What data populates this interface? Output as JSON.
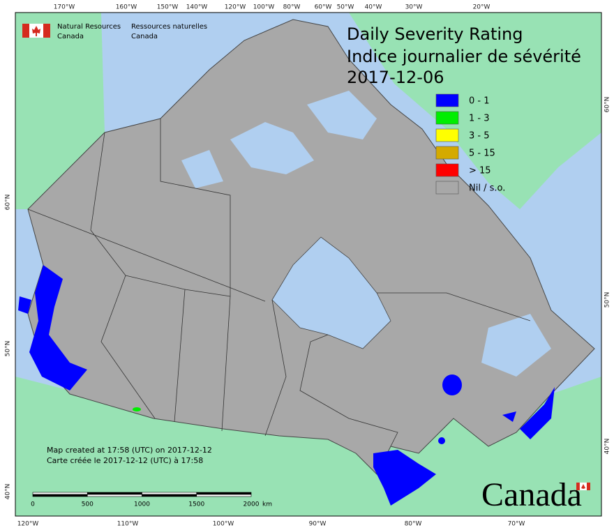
{
  "header": {
    "title_lines": [
      "Daily Severity Rating",
      "Indice journalier de sévérité",
      "2017-12-06"
    ]
  },
  "logo": {
    "english": [
      "Natural Resources",
      "Canada"
    ],
    "french": [
      "Ressources naturelles",
      "Canada"
    ]
  },
  "legend": {
    "items": [
      {
        "label": "0 - 1",
        "color": "#0000ff"
      },
      {
        "label": "1 - 3",
        "color": "#00ee00"
      },
      {
        "label": "3 - 5",
        "color": "#ffff00"
      },
      {
        "label": "5 - 15",
        "color": "#d4aa00"
      },
      {
        "label": "> 15",
        "color": "#ff0000"
      },
      {
        "label": "Nil / s.o.",
        "color": "#a8a8a8"
      }
    ]
  },
  "graticule": {
    "top": [
      "170°W",
      "160°W",
      "150°W",
      "140°W",
      "120°W",
      "100°W",
      "80°W",
      "60°W",
      "50°W",
      "40°W",
      "30°W",
      "20°W"
    ],
    "bottom": [
      "120°W",
      "110°W",
      "100°W",
      "90°W",
      "80°W",
      "70°W"
    ],
    "left": [
      "60°N",
      "50°N",
      "40°N"
    ],
    "right": [
      "60°N",
      "50°N",
      "40°N"
    ]
  },
  "credits": [
    "Map created at 17:58 (UTC) on 2017-12-12",
    "Carte créée le 2017-12-12 (UTC) à 17:58"
  ],
  "scale_bar": {
    "labels": [
      "0",
      "500",
      "1000",
      "1500",
      "2000"
    ],
    "unit": "km"
  },
  "wordmark": "Canada"
}
